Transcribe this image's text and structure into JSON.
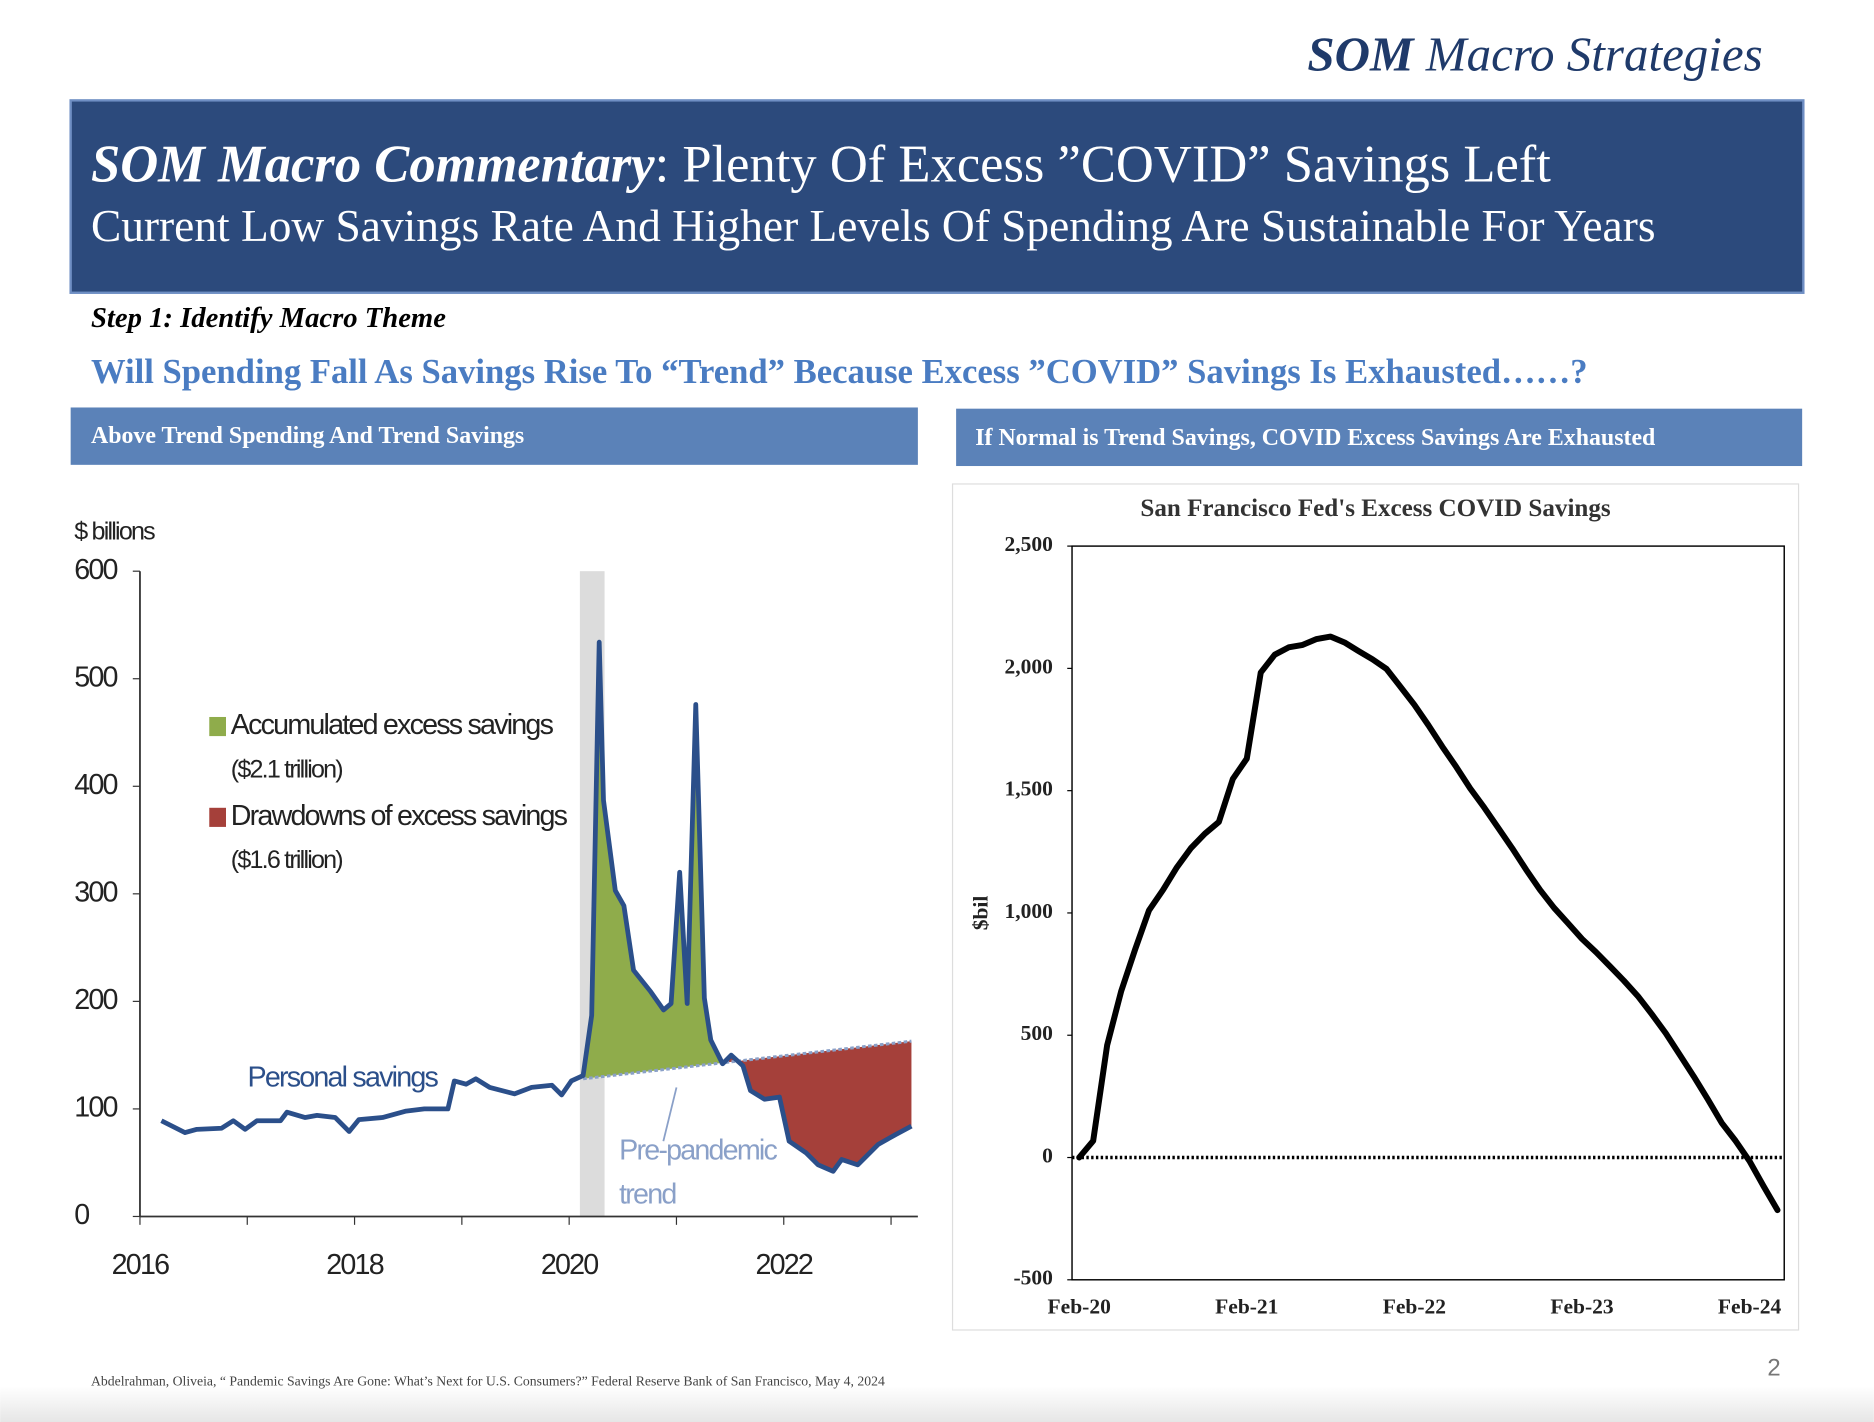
{
  "brand": {
    "bold": "SOM",
    "rest": "Macro Strategies"
  },
  "banner": {
    "title_bold": "SOM Macro Commentary",
    "title_rest": ": Plenty Of Excess ”COVID” Savings Left",
    "subtitle": "Current Low Savings Rate And Higher Levels Of Spending Are Sustainable For Years"
  },
  "step": "Step 1: Identify Macro Theme",
  "question": "Will Spending Fall As Savings Rise To “Trend” Because Excess ”COVID” Savings Is Exhausted……?",
  "panels": [
    "Above Trend Spending And Trend Savings",
    "If Normal is Trend Savings, COVID Excess Savings Are Exhausted"
  ],
  "chart_data": [
    {
      "type": "line",
      "y_label": "$ billions",
      "x": [
        2016.2,
        2016.42,
        2016.53,
        2016.76,
        2016.87,
        2016.98,
        2017.09,
        2017.31,
        2017.37,
        2017.54,
        2017.65,
        2017.82,
        2017.95,
        2018.04,
        2018.26,
        2018.48,
        2018.65,
        2018.87,
        2018.93,
        2019.04,
        2019.13,
        2019.26,
        2019.49,
        2019.65,
        2019.84,
        2019.93,
        2020.02,
        2020.13,
        2020.21,
        2020.28,
        2020.32,
        2020.43,
        2020.51,
        2020.6,
        2020.76,
        2020.88,
        2020.95,
        2021.03,
        2021.1,
        2021.18,
        2021.26,
        2021.32,
        2021.43,
        2021.51,
        2021.62,
        2021.69,
        2021.82,
        2021.96,
        2022.05,
        2022.21,
        2022.32,
        2022.46,
        2022.54,
        2022.69,
        2022.88,
        2023.04,
        2023.19
      ],
      "series": [
        {
          "name": "Personal savings",
          "color": "#2b4f8a",
          "values": [
            89,
            78,
            81,
            82,
            89,
            81,
            89,
            89,
            97,
            92,
            94,
            92,
            79,
            90,
            92,
            98,
            100,
            100,
            126,
            123,
            128,
            120,
            114,
            120,
            122,
            113,
            126,
            131,
            187,
            534,
            387,
            303,
            289,
            229,
            209,
            192,
            198,
            320,
            198,
            476,
            203,
            164,
            142,
            150,
            140,
            117,
            109,
            111,
            70,
            59,
            48,
            42,
            53,
            48,
            67,
            76,
            84
          ]
        }
      ],
      "trend": {
        "label_lines": [
          "Pre-pandemic",
          "trend"
        ],
        "x": [
          2020.13,
          2023.19
        ],
        "values": [
          128,
          163
        ],
        "color": "#8aa0c8"
      },
      "areas": [
        {
          "name": "Accumulated excess savings",
          "note": "($2.1 trillion)",
          "color": "#8fac4b"
        },
        {
          "name": "Drawdowns of excess savings",
          "note": "($1.6 trillion)",
          "color": "#a5403a"
        }
      ],
      "recession": [
        2020.1,
        2020.33
      ],
      "xlim": [
        2016,
        2023.25
      ],
      "ylim": [
        0,
        600
      ],
      "xticks": [
        2016,
        2018,
        2020,
        2022
      ],
      "minor_xticks": [
        2017,
        2019,
        2021,
        2023
      ],
      "yticks": [
        0,
        100,
        200,
        300,
        400,
        500,
        600
      ]
    },
    {
      "type": "line",
      "title": "San Francisco Fed's Excess COVID Savings",
      "y_label": "$bil",
      "categories": [
        "Feb-20",
        null,
        null,
        null,
        null,
        null,
        null,
        null,
        null,
        null,
        null,
        null,
        "Feb-21",
        null,
        null,
        null,
        null,
        null,
        null,
        null,
        null,
        null,
        null,
        null,
        "Feb-22",
        null,
        null,
        null,
        null,
        null,
        null,
        null,
        null,
        null,
        null,
        null,
        "Feb-23",
        null,
        null,
        null,
        null,
        null,
        null,
        null,
        null,
        null,
        null,
        null,
        "Feb-24",
        null,
        null
      ],
      "series": [
        {
          "color": "#000000",
          "values": [
            0,
            68,
            459,
            679,
            850,
            1011,
            1094,
            1187,
            1265,
            1324,
            1372,
            1548,
            1631,
            1983,
            2056,
            2086,
            2096,
            2120,
            2130,
            2106,
            2071,
            2037,
            1998,
            1925,
            1851,
            1768,
            1680,
            1597,
            1509,
            1431,
            1348,
            1265,
            1177,
            1094,
            1021,
            958,
            894,
            840,
            782,
            723,
            660,
            586,
            508,
            420,
            332,
            239,
            142,
            68,
            -15,
            -117,
            -215
          ]
        }
      ],
      "reference_lines": [
        0
      ],
      "ylim": [
        -500,
        2500
      ],
      "yticks": [
        -500,
        0,
        500,
        {
          "value": 1000,
          "label": "1,000"
        },
        {
          "value": 1500,
          "label": "1,500"
        },
        {
          "value": 2000,
          "label": "2,000"
        },
        {
          "value": 2500,
          "label": "2,500"
        }
      ]
    }
  ],
  "source": "Abdelrahman, Oliveia, “ Pandemic Savings Are Gone: What’s Next for U.S. Consumers?” Federal Reserve Bank of San Francisco, May 4, 2024",
  "page_number": 2
}
